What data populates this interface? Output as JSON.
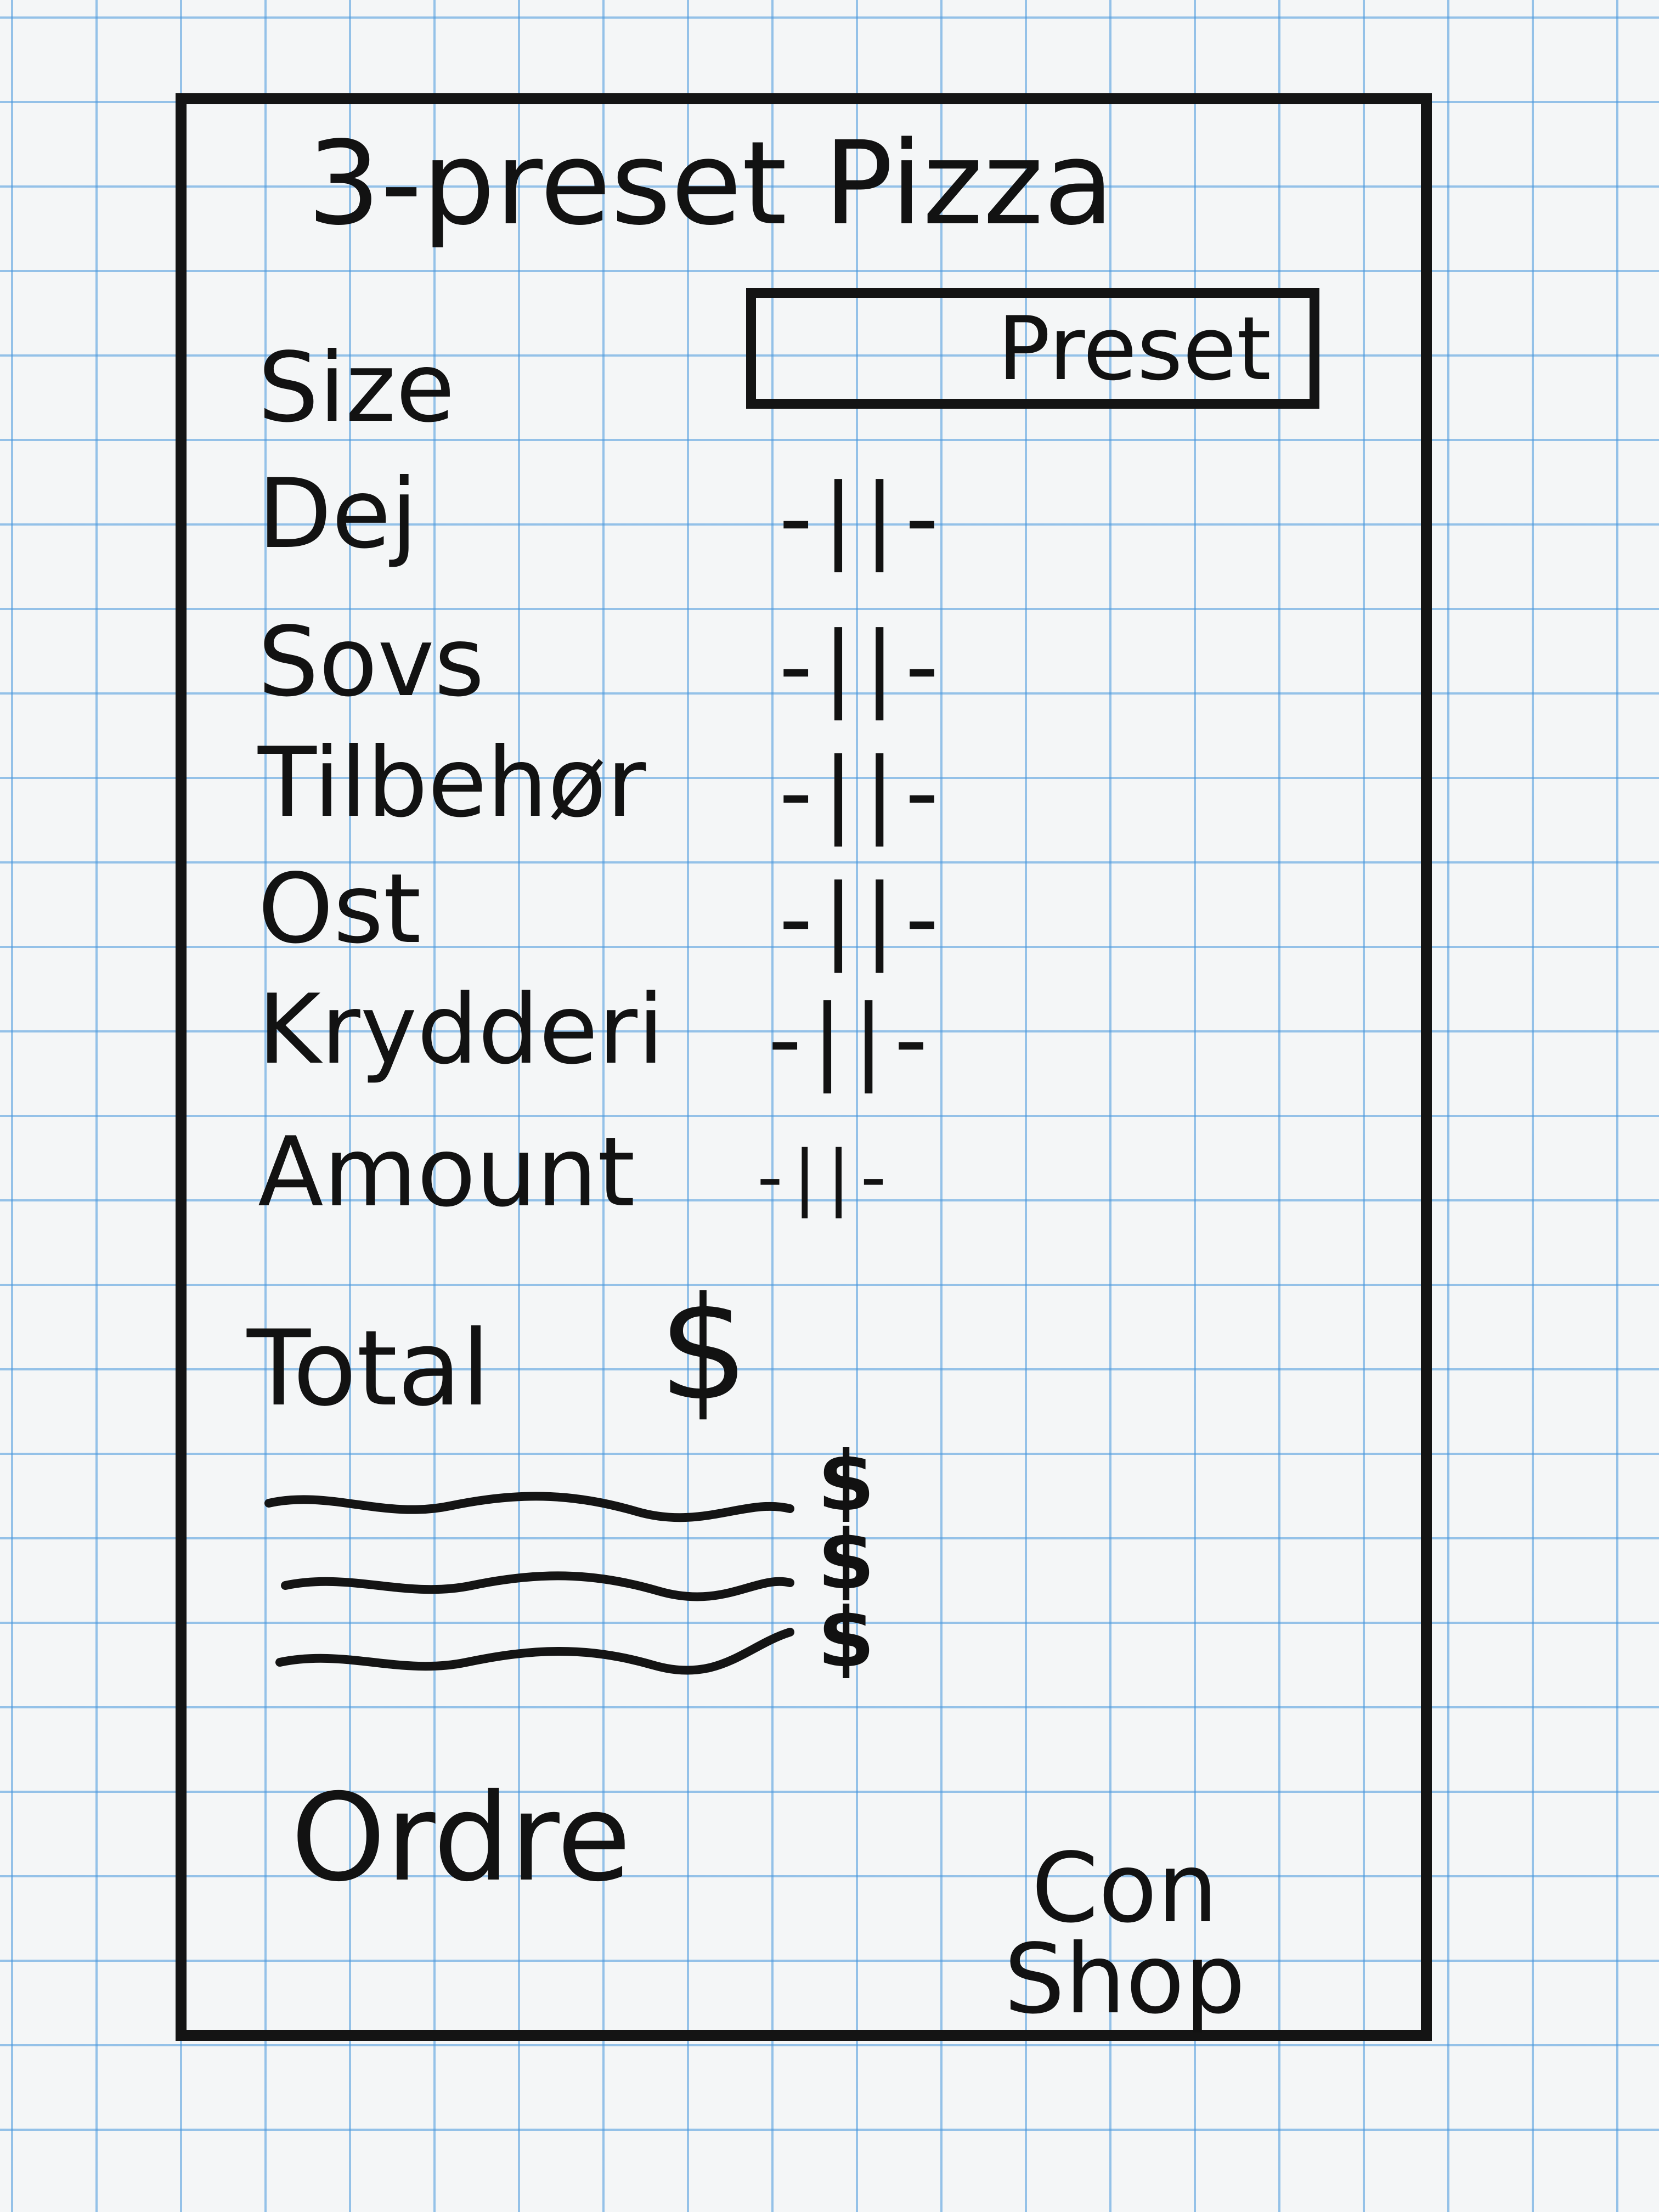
{
  "header": {
    "title": "3-preset Pizza"
  },
  "preset_select": {
    "label": "Preset"
  },
  "options": [
    {
      "label": "Size"
    },
    {
      "label": "Dej",
      "stepper": "-||-"
    },
    {
      "label": "Sovs",
      "stepper": "-||-"
    },
    {
      "label": "Tilbehør",
      "stepper": "-||-"
    },
    {
      "label": "Ost",
      "stepper": "-||-"
    },
    {
      "label": "Krydderi",
      "stepper": "-||-"
    },
    {
      "label": "Amount",
      "stepper": "-||-"
    }
  ],
  "total": {
    "label": "Total",
    "currency": "$"
  },
  "line_items": [
    {
      "price": "$"
    },
    {
      "price": "$"
    },
    {
      "price": "$"
    }
  ],
  "actions": {
    "order_label": "Ordre",
    "continue_label_1": "Con",
    "continue_label_2": "Shop"
  },
  "colors": {
    "ink": "#141414",
    "grid": "#4696dc",
    "paper": "#f4f6f7"
  }
}
